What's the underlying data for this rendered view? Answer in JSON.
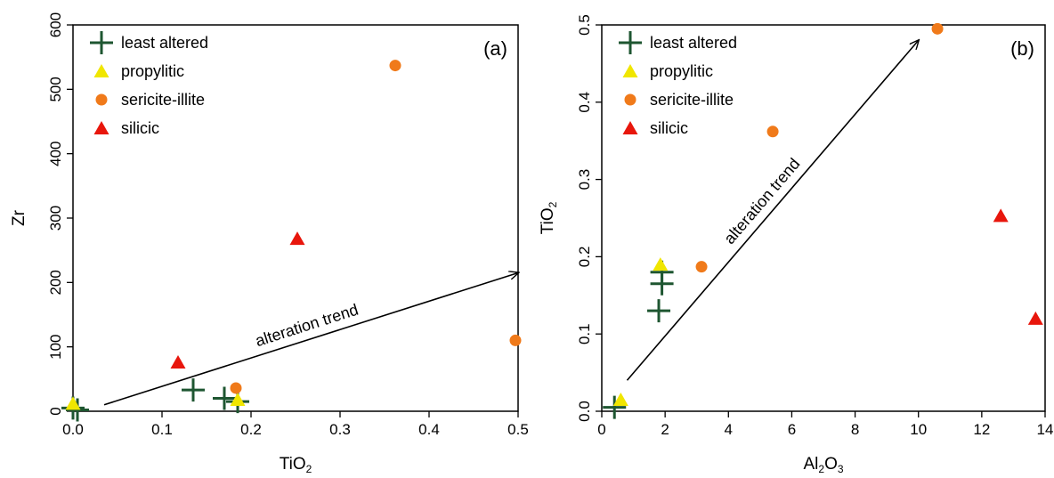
{
  "chart_data": [
    {
      "type": "scatter",
      "panel_label": "(a)",
      "xlabel": {
        "base": "TiO",
        "sub": "2"
      },
      "ylabel": {
        "base": "Zr",
        "sub": ""
      },
      "xlim": [
        0,
        0.5
      ],
      "ylim": [
        0,
        600
      ],
      "xticks": [
        "0.0",
        "0.1",
        "0.2",
        "0.3",
        "0.4",
        "0.5"
      ],
      "yticks": [
        "0",
        "100",
        "200",
        "300",
        "400",
        "500",
        "600"
      ],
      "xtick_values": [
        0,
        0.1,
        0.2,
        0.3,
        0.4,
        0.5
      ],
      "ytick_values": [
        0,
        100,
        200,
        300,
        400,
        500,
        600
      ],
      "legend_position": "top-left",
      "trend": {
        "label": "alteration trend",
        "from": [
          0.035,
          10
        ],
        "to": [
          0.5,
          215
        ]
      },
      "series": [
        {
          "name": "least altered",
          "marker": "plus",
          "color": "#1e5631",
          "points": [
            [
              0.0,
              5
            ],
            [
              0.005,
              2
            ],
            [
              0.135,
              33
            ],
            [
              0.17,
              20
            ],
            [
              0.185,
              15
            ]
          ]
        },
        {
          "name": "propylitic",
          "marker": "triangle",
          "color": "#f0e600",
          "points": [
            [
              0.0,
              12
            ],
            [
              0.185,
              18
            ]
          ]
        },
        {
          "name": "sericite-illite",
          "marker": "circle",
          "color": "#f07a1a",
          "points": [
            [
              0.362,
              537
            ],
            [
              0.497,
              110
            ],
            [
              0.183,
              36
            ]
          ]
        },
        {
          "name": "silicic",
          "marker": "triangle",
          "color": "#e8160c",
          "points": [
            [
              0.252,
              268
            ],
            [
              0.118,
              76
            ]
          ]
        }
      ]
    },
    {
      "type": "scatter",
      "panel_label": "(b)",
      "xlabel": {
        "base": "Al",
        "sub1": "2",
        "mid": "O",
        "sub2": "3"
      },
      "ylabel": {
        "base": "TiO",
        "sub": "2"
      },
      "xlim": [
        0,
        14
      ],
      "ylim": [
        0,
        0.5
      ],
      "xticks": [
        "0",
        "2",
        "4",
        "6",
        "8",
        "10",
        "12",
        "14"
      ],
      "yticks": [
        "0.0",
        "0.1",
        "0.2",
        "0.3",
        "0.4",
        "0.5"
      ],
      "xtick_values": [
        0,
        2,
        4,
        6,
        8,
        10,
        12,
        14
      ],
      "ytick_values": [
        0,
        0.1,
        0.2,
        0.3,
        0.4,
        0.5
      ],
      "legend_position": "top-left",
      "trend": {
        "label": "alteration trend",
        "from": [
          0.8,
          0.04
        ],
        "to": [
          10.0,
          0.48
        ]
      },
      "series": [
        {
          "name": "least altered",
          "marker": "plus",
          "color": "#1e5631",
          "points": [
            [
              0.4,
              0.005
            ],
            [
              1.9,
              0.18
            ],
            [
              1.9,
              0.165
            ],
            [
              1.8,
              0.13
            ]
          ]
        },
        {
          "name": "propylitic",
          "marker": "triangle",
          "color": "#f0e600",
          "points": [
            [
              0.6,
              0.015
            ],
            [
              1.85,
              0.19
            ]
          ]
        },
        {
          "name": "sericite-illite",
          "marker": "circle",
          "color": "#f07a1a",
          "points": [
            [
              10.6,
              0.495
            ],
            [
              5.4,
              0.362
            ],
            [
              3.15,
              0.187
            ]
          ]
        },
        {
          "name": "silicic",
          "marker": "triangle",
          "color": "#e8160c",
          "points": [
            [
              12.6,
              0.253
            ],
            [
              13.7,
              0.12
            ]
          ]
        }
      ]
    }
  ]
}
